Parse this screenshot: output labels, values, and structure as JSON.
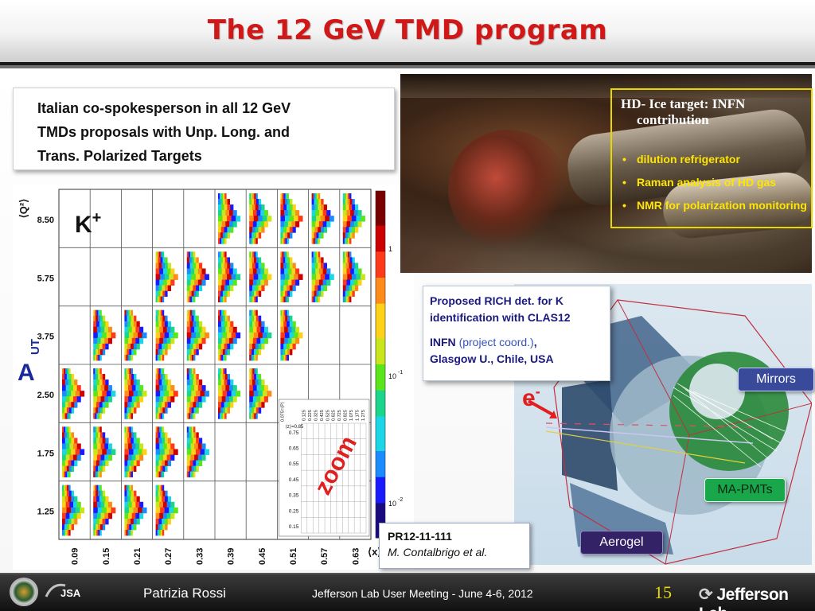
{
  "slide": {
    "title": "The 12 GeV TMD program"
  },
  "spokesperson": {
    "lines": [
      "Italian co-spokesperson in all 12 GeV",
      "TMDs proposals with Unp. Long. and",
      "Trans. Polarized Targets"
    ]
  },
  "target_box": {
    "title_line1": "HD- Ice target: INFN",
    "title_line2": "contribution",
    "items": [
      "dilution refrigerator",
      "Raman analysis of HD gas",
      "NMR for polarization monitoring"
    ]
  },
  "rich_box": {
    "line1": "Proposed RICH det. for K",
    "line2": "identification with CLAS12",
    "infn": "INFN",
    "coord": "(project coord.)",
    "comma": ",",
    "partners": "Glasgow U., Chile, USA"
  },
  "tags": {
    "mirrors": "Mirrors",
    "mapmts": "MA-PMTs",
    "aerogel": "Aerogel",
    "electron": "e",
    "electron_sup": "-"
  },
  "pr_box": {
    "number": "PR12-11-111",
    "authors": "M. Contalbrigo et al."
  },
  "chart_data": {
    "type": "heatmap",
    "title": "K+",
    "title_base": "K",
    "title_sup": "+",
    "y_axis_label": "⟨Q²⟩",
    "x_axis_label": "⟨x⟩",
    "side_label": "A",
    "side_label_sub": "UT",
    "zoom_label": "zoom",
    "x_ticks": [
      "0.09",
      "0.15",
      "0.21",
      "0.27",
      "0.33",
      "0.39",
      "0.45",
      "0.51",
      "0.57",
      "0.63"
    ],
    "y_ticks": [
      "8.50",
      "5.75",
      "3.75",
      "2.50",
      "1.75",
      "1.25"
    ],
    "colorbar_ticks": [
      "1",
      "10",
      "10"
    ],
    "colorbar_exponents": [
      "",
      "-1",
      "-2"
    ],
    "inset_header": "⟨z⟩=0.85",
    "inset_pt_header": "0.075=⟨P⟩",
    "inset_rows": [
      "0.75",
      "0.65",
      "0.55",
      "0.45",
      "0.35",
      "0.25",
      "0.15"
    ],
    "inset_cols": [
      "0.125",
      "0.225",
      "0.325",
      "0.425",
      "0.525",
      "0.625",
      "0.725",
      "0.825",
      "1.075",
      "1.175",
      "1.275"
    ],
    "filled_cells": [
      {
        "row": 0,
        "col": 5
      },
      {
        "row": 0,
        "col": 6
      },
      {
        "row": 0,
        "col": 7
      },
      {
        "row": 0,
        "col": 8
      },
      {
        "row": 0,
        "col": 9
      },
      {
        "row": 1,
        "col": 3
      },
      {
        "row": 1,
        "col": 4
      },
      {
        "row": 1,
        "col": 5
      },
      {
        "row": 1,
        "col": 6
      },
      {
        "row": 1,
        "col": 7
      },
      {
        "row": 1,
        "col": 8
      },
      {
        "row": 1,
        "col": 9
      },
      {
        "row": 2,
        "col": 1
      },
      {
        "row": 2,
        "col": 2
      },
      {
        "row": 2,
        "col": 3
      },
      {
        "row": 2,
        "col": 4
      },
      {
        "row": 2,
        "col": 5
      },
      {
        "row": 2,
        "col": 6
      },
      {
        "row": 2,
        "col": 7
      },
      {
        "row": 3,
        "col": 0
      },
      {
        "row": 3,
        "col": 1
      },
      {
        "row": 3,
        "col": 2
      },
      {
        "row": 3,
        "col": 3
      },
      {
        "row": 3,
        "col": 4
      },
      {
        "row": 3,
        "col": 5
      },
      {
        "row": 3,
        "col": 6
      },
      {
        "row": 4,
        "col": 0
      },
      {
        "row": 4,
        "col": 1
      },
      {
        "row": 4,
        "col": 2
      },
      {
        "row": 4,
        "col": 3
      },
      {
        "row": 4,
        "col": 4
      },
      {
        "row": 5,
        "col": 0
      },
      {
        "row": 5,
        "col": 1
      },
      {
        "row": 5,
        "col": 2
      },
      {
        "row": 5,
        "col": 3
      }
    ],
    "grid_rows": 6,
    "grid_cols": 10
  },
  "footer": {
    "author": "Patrizia Rossi",
    "meeting": "Jefferson Lab User Meeting  - June 4-6, 2012",
    "page": "15",
    "lab": "Jefferson Lab",
    "jsa": "JSA"
  },
  "colors": {
    "title": "#d01818",
    "target_items": "#ffe600",
    "rich_text": "#1a1a80",
    "zoom": "#e02020"
  }
}
